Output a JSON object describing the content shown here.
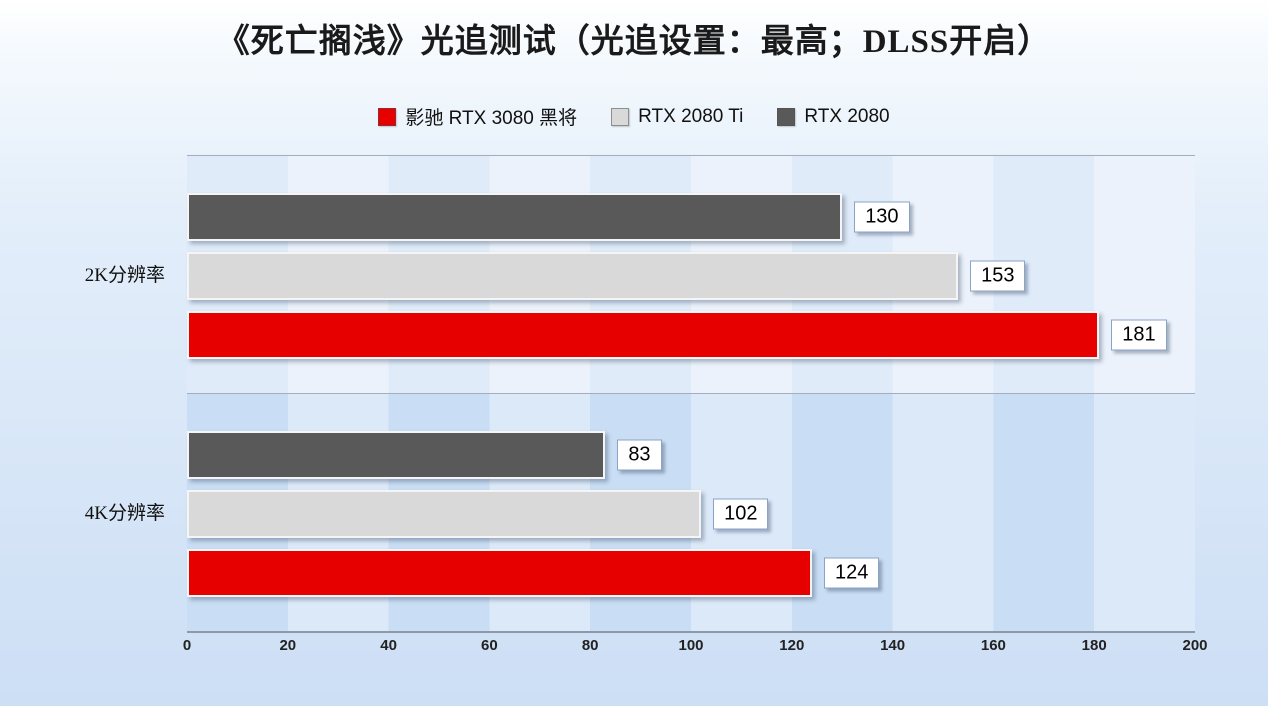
{
  "chart_data": {
    "type": "bar",
    "orientation": "horizontal",
    "title": "《死亡搁浅》光追测试（光追设置：最高；DLSS开启）",
    "categories": [
      "2K分辨率",
      "4K分辨率"
    ],
    "series": [
      {
        "name": "影驰 RTX 3080 黑将",
        "color": "#e60000",
        "values": [
          181,
          124
        ]
      },
      {
        "name": "RTX 2080 Ti",
        "color": "#d9d9d9",
        "values": [
          153,
          102
        ]
      },
      {
        "name": "RTX 2080",
        "color": "#595959",
        "values": [
          130,
          83
        ]
      }
    ],
    "xlim": [
      0,
      200
    ],
    "xticks": [
      0,
      20,
      40,
      60,
      80,
      100,
      120,
      140,
      160,
      180,
      200
    ],
    "legend_position": "top",
    "grid": "vertical-bands",
    "value_labels": true
  },
  "palette": {
    "band_dark": "#c9ddf4",
    "band_light": "#dce9f9",
    "top_group_overlay": "rgba(255,255,255,0.42)",
    "axis_line": "#8d99a9",
    "value_label_border": "#8ba3c7",
    "background_top": "#ffffff",
    "background_bottom": "#cddff5"
  }
}
